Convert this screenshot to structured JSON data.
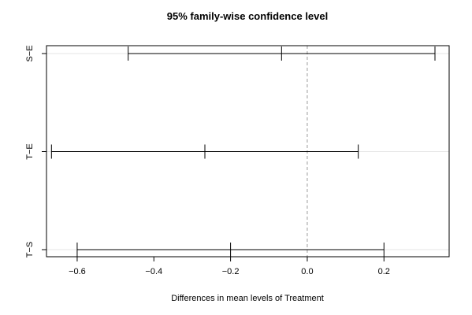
{
  "chart_data": {
    "type": "interval",
    "title": "95% family-wise confidence level",
    "xlabel": "Differences in mean levels of Treatment",
    "ylabel": "",
    "xlim": [
      -0.68,
      0.37
    ],
    "xticks": [
      -0.6,
      -0.4,
      -0.2,
      0.0,
      0.2
    ],
    "xtick_labels": [
      "−0.6",
      "−0.4",
      "−0.2",
      "0.0",
      "0.2"
    ],
    "reference_value": 0.0,
    "comparisons": [
      {
        "label": "S−E",
        "lower": -0.467,
        "estimate": -0.067,
        "upper": 0.333
      },
      {
        "label": "T−E",
        "lower": -0.667,
        "estimate": -0.267,
        "upper": 0.133
      },
      {
        "label": "T−S",
        "lower": -0.6,
        "estimate": -0.2,
        "upper": 0.2
      }
    ]
  }
}
